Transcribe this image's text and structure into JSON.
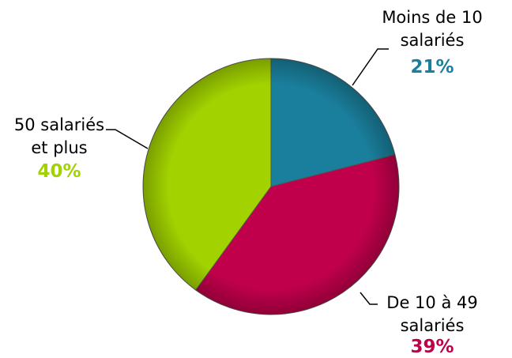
{
  "chart_data": {
    "type": "pie",
    "categories": [
      "Moins de 10 salariés",
      "De 10 à 49 salariés",
      "50 salariés et plus"
    ],
    "values": [
      21,
      39,
      40
    ],
    "value_labels": [
      "21%",
      "39%",
      "40%"
    ],
    "colors": [
      "#1a7f9c",
      "#c0004b",
      "#a2d300"
    ]
  }
}
